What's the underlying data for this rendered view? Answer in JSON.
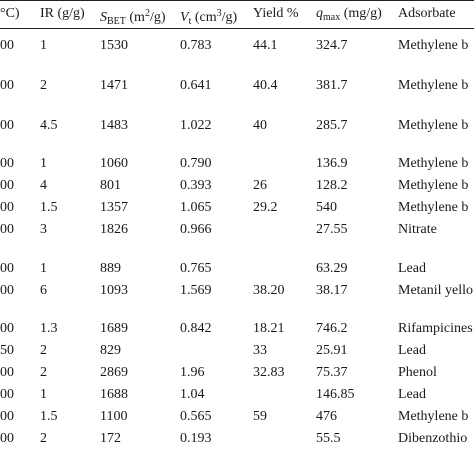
{
  "header": {
    "temp": "°C)",
    "ir": "IR (g/g)",
    "sbet_label": "S",
    "sbet_sub": "BET",
    "sbet_unit_pre": " (m",
    "sbet_sup": "2",
    "sbet_unit_post": "/g)",
    "vt_label": "V",
    "vt_sub": "t",
    "vt_unit_pre": " (cm",
    "vt_sup": "3",
    "vt_unit_post": "/g)",
    "yield": "Yield  %",
    "qmax_label": "q",
    "qmax_sub": "max",
    "qmax_unit": " (mg/g)",
    "adsorbate": "Adsorbate"
  },
  "rows": [
    {
      "temp": "00",
      "ir": "1",
      "sbet": "1530",
      "vt": "0.783",
      "yield": "44.1",
      "qmax": "324.7",
      "adsorbate": "Methylene b"
    },
    {
      "temp": "00",
      "ir": "2",
      "sbet": "1471",
      "vt": "0.641",
      "yield": "40.4",
      "qmax": "381.7",
      "adsorbate": "Methylene b"
    },
    {
      "temp": "00",
      "ir": "4.5",
      "sbet": "1483",
      "vt": "1.022",
      "yield": "40",
      "qmax": "285.7",
      "adsorbate": "Methylene b"
    },
    {
      "temp": "00",
      "ir": "1",
      "sbet": "1060",
      "vt": "0.790",
      "yield": "",
      "qmax": "136.9",
      "adsorbate": "Methylene b"
    },
    {
      "temp": "00",
      "ir": "4",
      "sbet": "801",
      "vt": "0.393",
      "yield": "26",
      "qmax": "128.2",
      "adsorbate": "Methylene b"
    },
    {
      "temp": "00",
      "ir": "1.5",
      "sbet": "1357",
      "vt": "1.065",
      "yield": "29.2",
      "qmax": "540",
      "adsorbate": "Methylene b"
    },
    {
      "temp": "00",
      "ir": "3",
      "sbet": "1826",
      "vt": "0.966",
      "yield": "",
      "qmax": "27.55",
      "adsorbate": "Nitrate"
    },
    {
      "temp": "00",
      "ir": "1",
      "sbet": "889",
      "vt": "0.765",
      "yield": "",
      "qmax": "63.29",
      "adsorbate": "Lead"
    },
    {
      "temp": "00",
      "ir": "6",
      "sbet": "1093",
      "vt": "1.569",
      "yield": "38.20",
      "qmax": "38.17",
      "adsorbate": "Metanil yello"
    },
    {
      "temp": "00",
      "ir": "1.3",
      "sbet": "1689",
      "vt": "0.842",
      "yield": "18.21",
      "qmax": "746.2",
      "adsorbate": "Rifampicines"
    },
    {
      "temp": "50",
      "ir": "2",
      "sbet": "829",
      "vt": "",
      "yield": "33",
      "qmax": "25.91",
      "adsorbate": "Lead"
    },
    {
      "temp": "00",
      "ir": "2",
      "sbet": "2869",
      "vt": "1.96",
      "yield": "32.83",
      "qmax": "75.37",
      "adsorbate": "Phenol"
    },
    {
      "temp": "00",
      "ir": "1",
      "sbet": "1688",
      "vt": "1.04",
      "yield": "",
      "qmax": "146.85",
      "adsorbate": "Lead"
    },
    {
      "temp": "00",
      "ir": "1.5",
      "sbet": "1100",
      "vt": "0.565",
      "yield": "59",
      "qmax": "476",
      "adsorbate": "Methylene b"
    },
    {
      "temp": "00",
      "ir": "2",
      "sbet": "172",
      "vt": "0.193",
      "yield": "",
      "qmax": "55.5",
      "adsorbate": "Dibenzothio"
    }
  ]
}
